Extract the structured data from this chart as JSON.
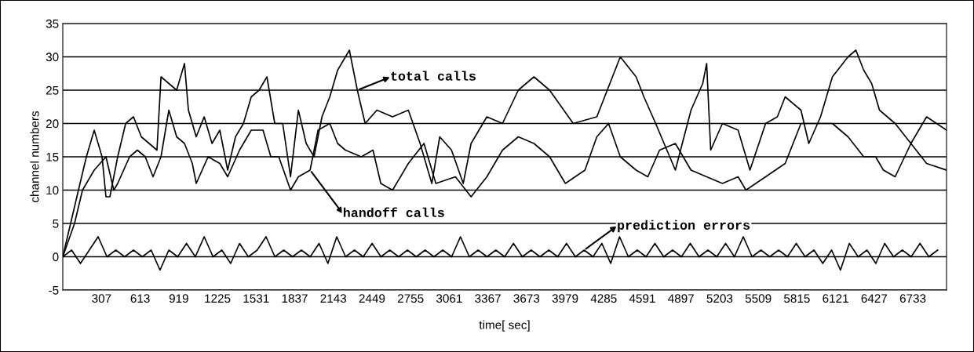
{
  "chart_data": {
    "type": "line",
    "xlabel": "time[ sec]",
    "ylabel": "channel numbers",
    "xlim": [
      0,
      7000
    ],
    "ylim": [
      -5,
      35
    ],
    "xticks": [
      307,
      613,
      919,
      1225,
      1531,
      1837,
      2143,
      2449,
      2755,
      3061,
      3367,
      3673,
      3979,
      4285,
      4591,
      4897,
      5203,
      5509,
      5815,
      6121,
      6427,
      6733
    ],
    "yticks": [
      -5,
      0,
      5,
      10,
      15,
      20,
      25,
      30,
      35
    ],
    "grid": "y",
    "legend": "center",
    "series": [
      {
        "name": "total calls",
        "color": "#000000",
        "x": [
          0,
          62,
          124,
          187,
          249,
          311,
          342,
          373,
          435,
          498,
          560,
          622,
          684,
          746,
          778,
          840,
          902,
          964,
          995,
          1057,
          1120,
          1182,
          1244,
          1306,
          1368,
          1431,
          1493,
          1555,
          1617,
          1679,
          1742,
          1804,
          1866,
          1928,
          1990,
          2053,
          2115,
          2177,
          2270,
          2333,
          2395,
          2488,
          2612,
          2737,
          2830,
          2923,
          2986,
          3079,
          3172,
          3234,
          3359,
          3483,
          3608,
          3732,
          3856,
          4043,
          4230,
          4416,
          4541,
          4603,
          4696,
          4852,
          4976,
          5069,
          5100,
          5132,
          5225,
          5349,
          5443,
          5567,
          5660,
          5722,
          5847,
          5909,
          6002,
          6096,
          6220,
          6282,
          6344,
          6407,
          6469,
          6593,
          6718,
          6842,
          7000
        ],
        "values": [
          0,
          5,
          10,
          15,
          19,
          15,
          9,
          9,
          15,
          20,
          21,
          18,
          17,
          16,
          27,
          26,
          25,
          29,
          22,
          18,
          21,
          17,
          19,
          13,
          18,
          20,
          24,
          25,
          27,
          20,
          20,
          12,
          22,
          17,
          15,
          21,
          24,
          28,
          31,
          25,
          20,
          22,
          21,
          22,
          17,
          11,
          18,
          16,
          11,
          17,
          21,
          20,
          25,
          27,
          25,
          20,
          21,
          30,
          27,
          24,
          20,
          13,
          22,
          26,
          29,
          16,
          20,
          19,
          13,
          20,
          21,
          24,
          22,
          17,
          21,
          27,
          30,
          31,
          28,
          26,
          22,
          20,
          17,
          21,
          19
        ]
      },
      {
        "name": "handoff calls",
        "color": "#000000",
        "x": [
          0,
          93,
          156,
          249,
          342,
          404,
          435,
          529,
          591,
          653,
          715,
          778,
          840,
          902,
          964,
          1026,
          1057,
          1151,
          1244,
          1306,
          1400,
          1493,
          1586,
          1648,
          1711,
          1804,
          1866,
          1959,
          2022,
          2115,
          2177,
          2239,
          2364,
          2457,
          2519,
          2612,
          2675,
          2737,
          2861,
          2955,
          3110,
          3234,
          3359,
          3483,
          3608,
          3732,
          3856,
          3981,
          4136,
          4230,
          4323,
          4416,
          4541,
          4634,
          4727,
          4852,
          4976,
          5100,
          5225,
          5349,
          5411,
          5567,
          5722,
          5847,
          5971,
          6096,
          6220,
          6344,
          6438,
          6500,
          6593,
          6718,
          6842,
          7000
        ],
        "values": [
          0,
          5,
          10,
          13,
          15,
          10,
          11,
          15,
          16,
          15,
          12,
          15,
          22,
          18,
          17,
          14,
          11,
          15,
          14,
          12,
          16,
          19,
          19,
          15,
          15,
          10,
          12,
          13,
          19,
          20,
          17,
          16,
          15,
          16,
          11,
          10,
          12,
          14,
          17,
          11,
          12,
          9,
          12,
          16,
          18,
          17,
          15,
          11,
          13,
          18,
          20,
          15,
          13,
          12,
          16,
          17,
          13,
          12,
          11,
          12,
          10,
          12,
          14,
          20,
          20,
          20,
          18,
          15,
          15,
          13,
          12,
          17,
          14,
          13
        ]
      },
      {
        "name": "prediction errors",
        "color": "#000000",
        "x": [
          0,
          70,
          140,
          210,
          280,
          350,
          420,
          490,
          560,
          630,
          700,
          770,
          840,
          910,
          980,
          1050,
          1120,
          1190,
          1260,
          1330,
          1400,
          1470,
          1540,
          1610,
          1680,
          1750,
          1820,
          1890,
          1960,
          2030,
          2100,
          2170,
          2240,
          2310,
          2380,
          2450,
          2520,
          2590,
          2660,
          2730,
          2800,
          2870,
          2940,
          3010,
          3080,
          3150,
          3220,
          3290,
          3360,
          3430,
          3500,
          3570,
          3640,
          3710,
          3780,
          3850,
          3920,
          3990,
          4060,
          4130,
          4200,
          4270,
          4340,
          4410,
          4480,
          4550,
          4620,
          4690,
          4760,
          4830,
          4900,
          4970,
          5040,
          5110,
          5180,
          5250,
          5320,
          5390,
          5460,
          5530,
          5600,
          5670,
          5740,
          5810,
          5880,
          5950,
          6020,
          6090,
          6160,
          6230,
          6300,
          6370,
          6440,
          6510,
          6580,
          6650,
          6720,
          6790,
          6860,
          6930
        ],
        "values": [
          0,
          1,
          -1,
          1,
          3,
          0,
          1,
          0,
          1,
          0,
          1,
          -2,
          1,
          0,
          2,
          0,
          3,
          0,
          1,
          -1,
          2,
          0,
          1,
          3,
          0,
          1,
          0,
          1,
          0,
          2,
          -1,
          3,
          0,
          1,
          0,
          2,
          0,
          1,
          0,
          1,
          0,
          1,
          0,
          1,
          0,
          3,
          0,
          1,
          0,
          1,
          0,
          2,
          0,
          1,
          0,
          1,
          0,
          2,
          0,
          1,
          0,
          2,
          -1,
          3,
          0,
          1,
          0,
          2,
          0,
          1,
          0,
          2,
          0,
          1,
          0,
          2,
          0,
          3,
          0,
          1,
          0,
          1,
          0,
          2,
          0,
          1,
          -1,
          1,
          -2,
          2,
          0,
          1,
          -1,
          2,
          0,
          1,
          0,
          2,
          0,
          1
        ]
      }
    ]
  }
}
